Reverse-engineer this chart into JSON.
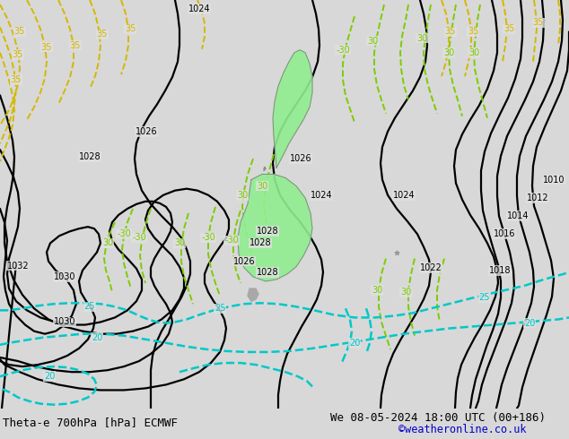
{
  "title_left": "Theta-e 700hPa [hPa] ECMWF",
  "title_right": "We 08-05-2024 18:00 UTC (00+186)",
  "copyright": "©weatheronline.co.uk",
  "bg_color": "#d8d8d8",
  "map_color": "#e0e0e0",
  "land_nz_color": "#90ee90",
  "land_gray_color": "#a8a8a8",
  "isobar_color": "#000000",
  "green_color": "#7CCC00",
  "cyan_color": "#00C8C8",
  "yellow_color": "#D4B800",
  "copyright_color": "#0000CC",
  "isobar_lw": 1.6,
  "theta_lw": 1.4,
  "label_fs": 7
}
